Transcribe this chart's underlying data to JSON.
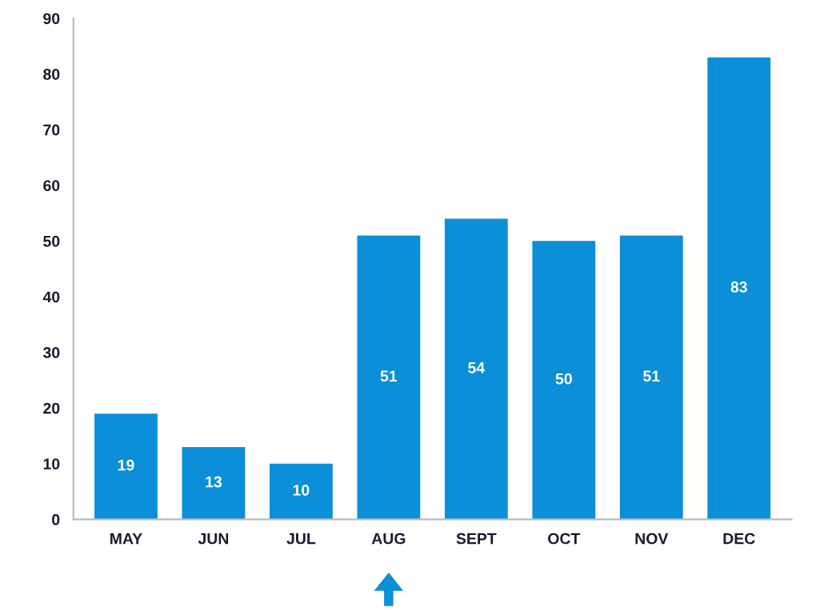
{
  "chart_data": {
    "type": "bar",
    "categories": [
      "MAY",
      "JUN",
      "JUL",
      "AUG",
      "SEPT",
      "OCT",
      "NOV",
      "DEC"
    ],
    "values": [
      19,
      13,
      10,
      51,
      54,
      50,
      51,
      83
    ],
    "color": "#0b8fd9",
    "ylim": [
      0,
      90
    ],
    "yticks": [
      0,
      10,
      20,
      30,
      40,
      50,
      60,
      70,
      80,
      90
    ],
    "grid": false,
    "data_labels": true
  }
}
